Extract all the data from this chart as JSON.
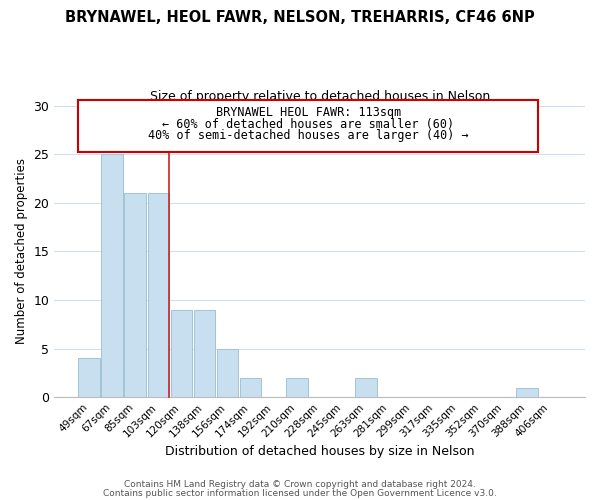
{
  "title": "BRYNAWEL, HEOL FAWR, NELSON, TREHARRIS, CF46 6NP",
  "subtitle": "Size of property relative to detached houses in Nelson",
  "xlabel": "Distribution of detached houses by size in Nelson",
  "ylabel": "Number of detached properties",
  "bar_color": "#c8dff0",
  "bar_edge_color": "#a0c4d8",
  "categories": [
    "49sqm",
    "67sqm",
    "85sqm",
    "103sqm",
    "120sqm",
    "138sqm",
    "156sqm",
    "174sqm",
    "192sqm",
    "210sqm",
    "228sqm",
    "245sqm",
    "263sqm",
    "281sqm",
    "299sqm",
    "317sqm",
    "335sqm",
    "352sqm",
    "370sqm",
    "388sqm",
    "406sqm"
  ],
  "values": [
    4,
    25,
    21,
    21,
    9,
    9,
    5,
    2,
    0,
    2,
    0,
    0,
    2,
    0,
    0,
    0,
    0,
    0,
    0,
    1,
    0
  ],
  "ylim": [
    0,
    30
  ],
  "yticks": [
    0,
    5,
    10,
    15,
    20,
    25,
    30
  ],
  "annotation_title": "BRYNAWEL HEOL FAWR: 113sqm",
  "annotation_line1": "← 60% of detached houses are smaller (60)",
  "annotation_line2": "40% of semi-detached houses are larger (40) →",
  "annotation_box_color": "#ffffff",
  "annotation_box_edge": "#cc0000",
  "vline_x_index": 3,
  "footer1": "Contains HM Land Registry data © Crown copyright and database right 2024.",
  "footer2": "Contains public sector information licensed under the Open Government Licence v3.0.",
  "background_color": "#ffffff",
  "grid_color": "#d0dff0"
}
